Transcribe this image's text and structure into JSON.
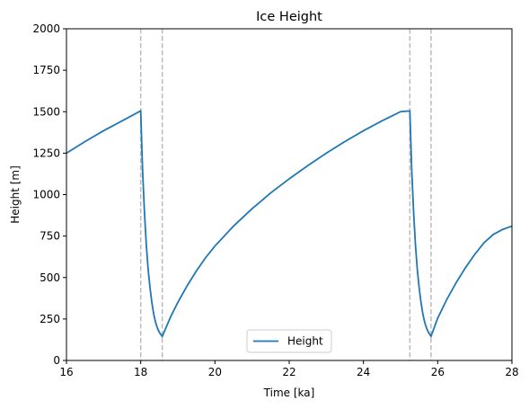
{
  "chart_data": {
    "type": "line",
    "title": "Ice Height",
    "xlabel": "Time [ka]",
    "ylabel": "Height [m]",
    "xlim": [
      16,
      28
    ],
    "ylim": [
      0,
      2000
    ],
    "xticks": [
      16,
      18,
      20,
      22,
      24,
      26,
      28
    ],
    "yticks": [
      0,
      250,
      500,
      750,
      1000,
      1250,
      1500,
      1750,
      2000
    ],
    "grid": false,
    "legend_position": "lower-center",
    "series": [
      {
        "name": "Height",
        "color": "#1f77b4",
        "x": [
          16.0,
          16.5,
          17.0,
          17.5,
          18.0,
          18.05,
          18.1,
          18.15,
          18.2,
          18.25,
          18.3,
          18.35,
          18.4,
          18.45,
          18.5,
          18.58,
          18.8,
          19.0,
          19.25,
          19.5,
          19.75,
          20.0,
          20.5,
          21.0,
          21.5,
          22.0,
          22.5,
          23.0,
          23.5,
          24.0,
          24.5,
          25.0,
          25.25,
          25.3,
          25.35,
          25.4,
          25.45,
          25.5,
          25.55,
          25.6,
          25.65,
          25.7,
          25.75,
          25.82,
          26.0,
          26.25,
          26.5,
          26.75,
          27.0,
          27.25,
          27.5,
          27.75,
          28.0
        ],
        "y": [
          1250,
          1320,
          1385,
          1445,
          1505,
          1150,
          900,
          700,
          550,
          440,
          350,
          280,
          230,
          195,
          170,
          145,
          260,
          350,
          450,
          540,
          620,
          690,
          810,
          915,
          1010,
          1095,
          1175,
          1250,
          1320,
          1385,
          1445,
          1500,
          1505,
          1150,
          900,
          700,
          550,
          440,
          350,
          280,
          230,
          195,
          170,
          145,
          255,
          370,
          470,
          560,
          640,
          710,
          760,
          790,
          810
        ]
      }
    ],
    "vlines": {
      "x": [
        18.0,
        18.58,
        25.25,
        25.82
      ],
      "color": "#bbbbbb",
      "style": "dashed"
    }
  }
}
